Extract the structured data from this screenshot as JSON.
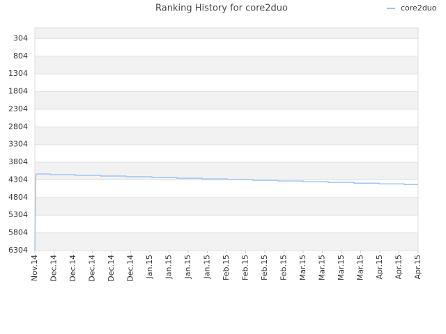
{
  "chart_data": {
    "type": "line",
    "title": "Ranking History for core2duo",
    "y_inverted": true,
    "ylim": [
      0,
      6304
    ],
    "yticks": [
      304,
      804,
      1304,
      1804,
      2304,
      2804,
      3304,
      3804,
      4304,
      4804,
      5304,
      5804,
      6304
    ],
    "xlim": [
      0,
      20
    ],
    "xticks": [
      {
        "value": 0,
        "label": "Nov.14"
      },
      {
        "value": 1,
        "label": "Dec.14"
      },
      {
        "value": 2,
        "label": "Dec.14"
      },
      {
        "value": 3,
        "label": "Dec.14"
      },
      {
        "value": 4,
        "label": "Dec.14"
      },
      {
        "value": 5,
        "label": "Dec.14"
      },
      {
        "value": 6,
        "label": "Jan.15"
      },
      {
        "value": 7,
        "label": "Jan.15"
      },
      {
        "value": 8,
        "label": "Jan.15"
      },
      {
        "value": 9,
        "label": "Jan.15"
      },
      {
        "value": 10,
        "label": "Feb.15"
      },
      {
        "value": 11,
        "label": "Feb.15"
      },
      {
        "value": 12,
        "label": "Feb.15"
      },
      {
        "value": 13,
        "label": "Feb.15"
      },
      {
        "value": 14,
        "label": "Mar.15"
      },
      {
        "value": 15,
        "label": "Mar.15"
      },
      {
        "value": 16,
        "label": "Mar.15"
      },
      {
        "value": 17,
        "label": "Mar.15"
      },
      {
        "value": 18,
        "label": "Apr.15"
      },
      {
        "value": 19,
        "label": "Apr.15"
      },
      {
        "value": 20,
        "label": "Apr.15"
      }
    ],
    "grid": true,
    "legend": "top-right",
    "x": [
      0,
      0.04,
      0.07,
      0.8,
      0.8,
      2.11,
      2.11,
      3.45,
      3.45,
      4.76,
      4.76,
      6.11,
      6.11,
      7.42,
      7.42,
      8.73,
      8.73,
      10.04,
      10.04,
      11.38,
      11.38,
      12.69,
      12.69,
      14,
      14,
      15.31,
      15.31,
      16.65,
      16.65,
      17.96,
      17.96,
      19.27,
      19.27,
      20
    ],
    "series": [
      {
        "name": "core2duo",
        "color": "#9fc5f0",
        "values": [
          6304,
          4300,
          4137,
          4137,
          4157,
          4157,
          4177,
          4177,
          4197,
          4197,
          4217,
          4217,
          4237,
          4237,
          4257,
          4257,
          4277,
          4277,
          4297,
          4297,
          4317,
          4317,
          4337,
          4337,
          4357,
          4357,
          4377,
          4377,
          4397,
          4397,
          4417,
          4417,
          4437,
          4437
        ]
      }
    ]
  }
}
